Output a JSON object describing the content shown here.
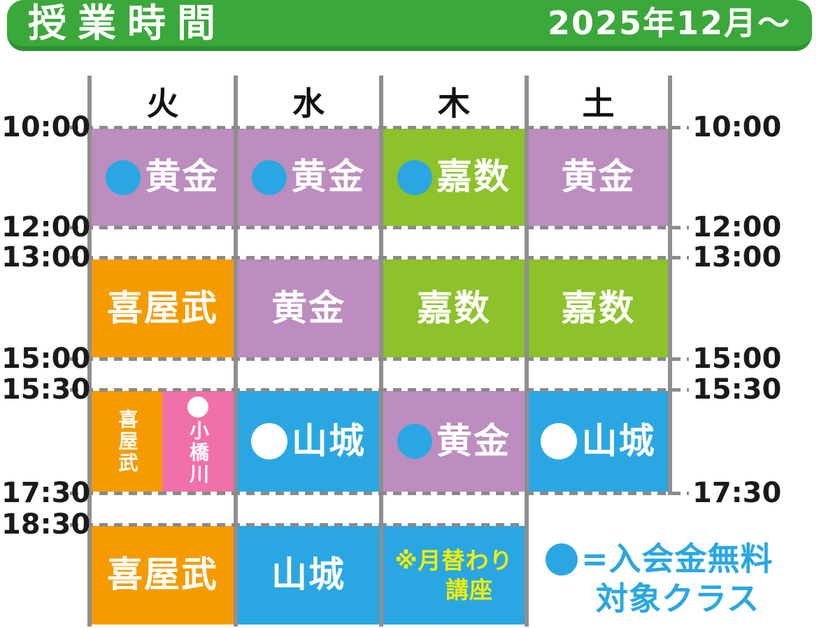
{
  "header": {
    "title": "授業時間",
    "period": "2025年12月〜"
  },
  "days": [
    "火",
    "水",
    "木",
    "土"
  ],
  "time_rows": [
    {
      "label": "10:00",
      "right_label": true
    },
    {
      "label": "12:00",
      "right_label": true
    },
    {
      "label": "13:00",
      "right_label": true
    },
    {
      "label": "15:00",
      "right_label": true
    },
    {
      "label": "15:30",
      "right_label": true
    },
    {
      "label": "17:30",
      "right_label": true
    },
    {
      "label": "18:30",
      "right_label": false
    }
  ],
  "row_time_ranges": [
    "10:00-12:00",
    "13:00-15:00",
    "15:30-17:30",
    "18:30-"
  ],
  "schedule": {
    "cells": [
      {
        "row": 0,
        "col": 0,
        "day": "火",
        "teacher": "黄金",
        "color": "purple",
        "marker": "blue"
      },
      {
        "row": 0,
        "col": 1,
        "day": "水",
        "teacher": "黄金",
        "color": "purple",
        "marker": "blue"
      },
      {
        "row": 0,
        "col": 2,
        "day": "木",
        "teacher": "嘉数",
        "color": "green_cell",
        "marker": "blue"
      },
      {
        "row": 0,
        "col": 3,
        "day": "土",
        "teacher": "黄金",
        "color": "purple",
        "marker": null
      },
      {
        "row": 1,
        "col": 0,
        "day": "火",
        "teacher": "喜屋武",
        "color": "orange",
        "marker": null
      },
      {
        "row": 1,
        "col": 1,
        "day": "水",
        "teacher": "黄金",
        "color": "purple",
        "marker": null
      },
      {
        "row": 1,
        "col": 2,
        "day": "木",
        "teacher": "嘉数",
        "color": "green_cell",
        "marker": null
      },
      {
        "row": 1,
        "col": 3,
        "day": "土",
        "teacher": "嘉数",
        "color": "green_cell",
        "marker": null
      },
      {
        "row": 2,
        "col": 0,
        "day": "火",
        "teacher": "喜屋武",
        "color": "orange",
        "marker": null,
        "vertical": true,
        "half": "left"
      },
      {
        "row": 2,
        "col": 0,
        "day": "火",
        "teacher": "小橋川",
        "color": "pink",
        "marker": "white_small",
        "vertical": true,
        "half": "right"
      },
      {
        "row": 2,
        "col": 1,
        "day": "水",
        "teacher": "山城",
        "color": "blue",
        "marker": "white"
      },
      {
        "row": 2,
        "col": 2,
        "day": "木",
        "teacher": "黄金",
        "color": "purple",
        "marker": "blue"
      },
      {
        "row": 2,
        "col": 3,
        "day": "土",
        "teacher": "山城",
        "color": "blue",
        "marker": "white"
      },
      {
        "row": 3,
        "col": 0,
        "day": "火",
        "teacher": "喜屋武",
        "color": "orange",
        "marker": null
      },
      {
        "row": 3,
        "col": 1,
        "day": "水",
        "teacher": "山城",
        "color": "blue",
        "marker": null
      },
      {
        "row": 3,
        "col": 2,
        "day": "木",
        "teacher": "※月替わり講座",
        "teacher_lines": [
          "※月替わり",
          "講座"
        ],
        "color": "blue",
        "marker": null,
        "note": true
      }
    ]
  },
  "legend": {
    "marker": "●",
    "text1": "=入会金無料",
    "text2": "対象クラス"
  },
  "colors": {
    "header_green": "#3aa83a",
    "header_green_dark": "#2b9133",
    "purple": "#bc8dbe",
    "green_cell": "#8dc22a",
    "orange": "#f59b00",
    "blue": "#2aa7e2",
    "pink": "#f170a9",
    "marker_blue": "#2aa7e2",
    "yellow_text": "#f2ee00",
    "legend_blue": "#2aa7e2",
    "grid_gray": "#8f8f8f",
    "dash_gray": "#8a8a8a",
    "day_text": "#111111",
    "time_text": "#1a1a1a"
  }
}
